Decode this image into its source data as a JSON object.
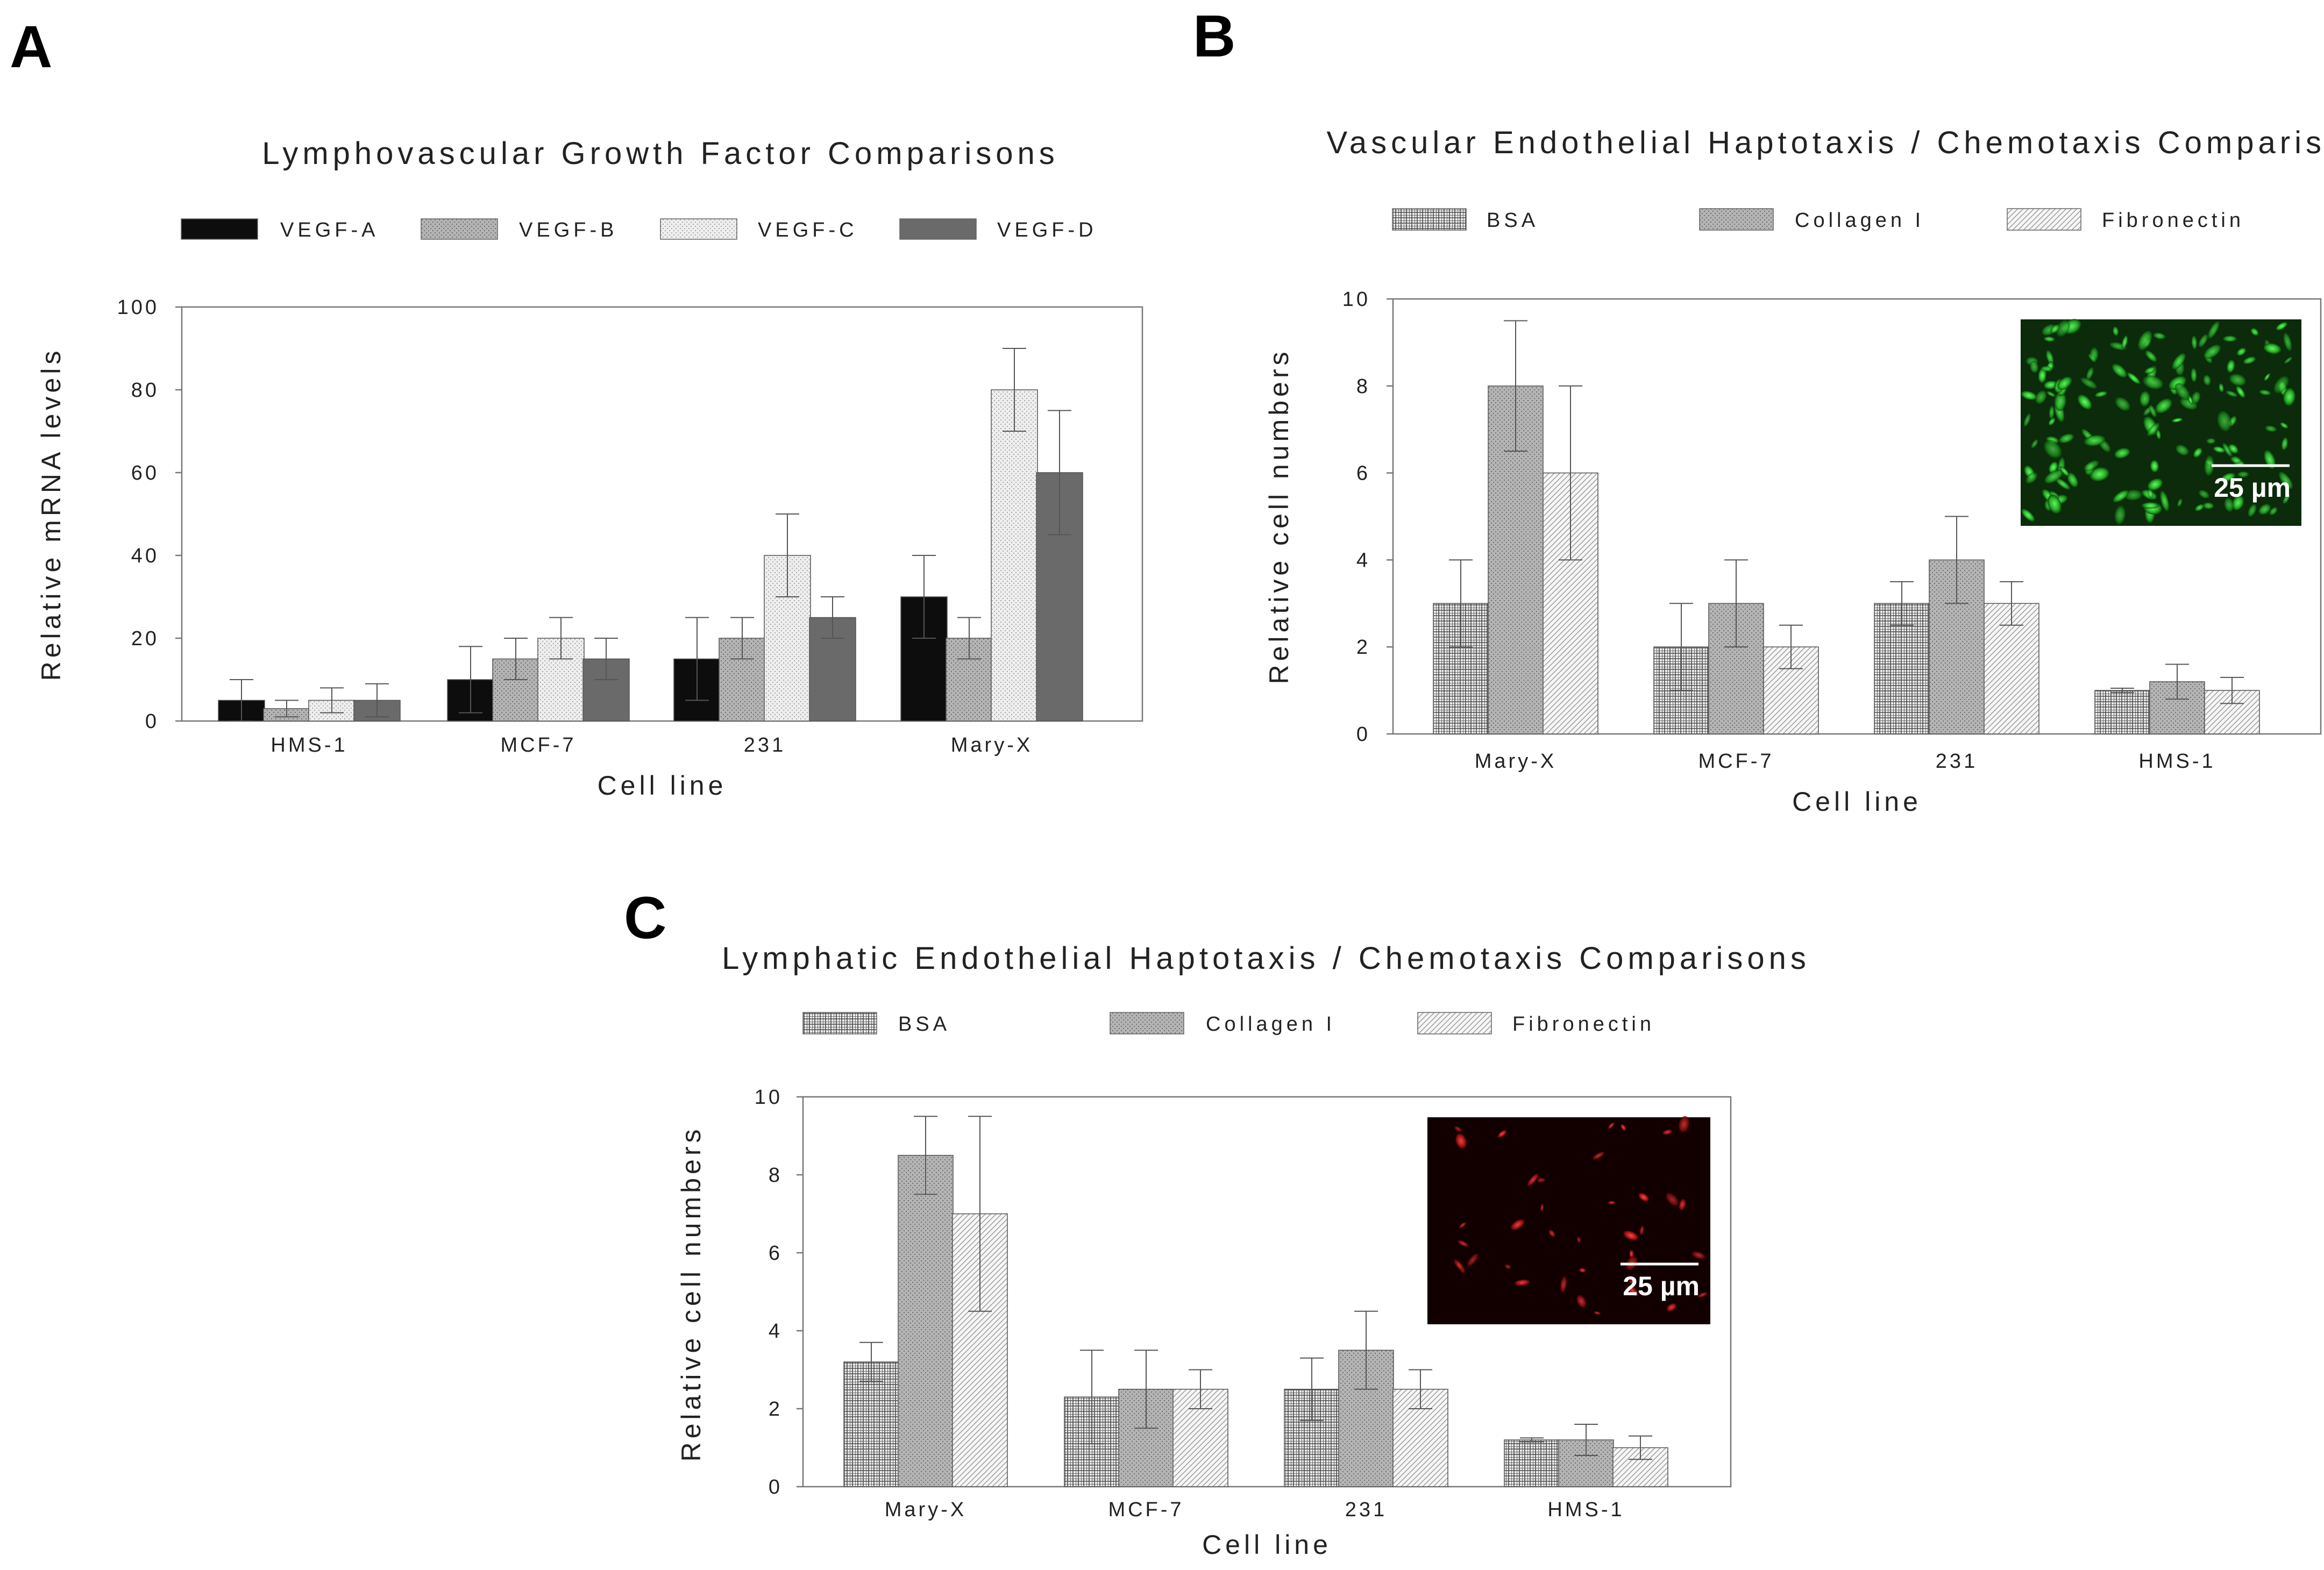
{
  "colors": {
    "vegf_a": "#0d0d0d",
    "vegf_d": "#6a6a6a",
    "bsa_line": "#555555",
    "collagen_fill": "#bdbdbd",
    "fibronectin_fill": "#ececec",
    "axis": "#777777",
    "inset_green_bg": "#0b2b0b",
    "inset_red_bg": "#120000"
  },
  "chart_data": [
    {
      "panel": "A",
      "type": "bar",
      "title": "Lymphovascular Growth Factor Comparisons",
      "xlabel": "Cell line",
      "ylabel": "Relative mRNA levels",
      "ylim": [
        0,
        100
      ],
      "yticks": [
        0,
        20,
        40,
        60,
        80,
        100
      ],
      "ytick_labels": [
        "0",
        "20",
        "40",
        "60",
        "80",
        "100"
      ],
      "grid": false,
      "legend_position": "top",
      "categories": [
        "HMS-1",
        "MCF-7",
        "231",
        "Mary-X"
      ],
      "series": [
        {
          "name": "VEGF-A",
          "pattern": "solid-black",
          "values": [
            5,
            10,
            15,
            30
          ],
          "errors": [
            5,
            8,
            10,
            10
          ]
        },
        {
          "name": "VEGF-B",
          "pattern": "gray-dots",
          "values": [
            3,
            15,
            20,
            20
          ],
          "errors": [
            2,
            5,
            5,
            5
          ]
        },
        {
          "name": "VEGF-C",
          "pattern": "light-dots",
          "values": [
            5,
            20,
            40,
            80
          ],
          "errors": [
            3,
            5,
            10,
            10
          ]
        },
        {
          "name": "VEGF-D",
          "pattern": "solid-gray",
          "values": [
            5,
            15,
            25,
            60
          ],
          "errors": [
            4,
            5,
            5,
            15
          ]
        }
      ]
    },
    {
      "panel": "B",
      "type": "bar",
      "title": "Vascular Endothelial Haptotaxis / Chemotaxis Comparisons",
      "xlabel": "Cell line",
      "ylabel": "Relative cell numbers",
      "ylim": [
        0,
        10
      ],
      "yticks": [
        0,
        2,
        4,
        6,
        8,
        10
      ],
      "ytick_labels": [
        "0",
        "2",
        "4",
        "6",
        "8",
        "10"
      ],
      "grid": false,
      "legend_position": "top",
      "categories": [
        "Mary-X",
        "MCF-7",
        "231",
        "HMS-1"
      ],
      "series": [
        {
          "name": "BSA",
          "pattern": "crosshatch",
          "values": [
            3,
            2,
            3,
            1
          ],
          "errors": [
            1,
            1,
            0.5,
            0.05
          ]
        },
        {
          "name": "Collagen I",
          "pattern": "gray-dots",
          "values": [
            8,
            3,
            4,
            1.2
          ],
          "errors": [
            1.5,
            1,
            1,
            0.4
          ]
        },
        {
          "name": "Fibronectin",
          "pattern": "diagonal",
          "values": [
            6,
            2,
            3,
            1
          ],
          "errors": [
            2,
            0.5,
            0.5,
            0.3
          ]
        }
      ],
      "inset": {
        "scale_label": "25 µm",
        "color": "green",
        "position": "top-right"
      }
    },
    {
      "panel": "C",
      "type": "bar",
      "title": "Lymphatic Endothelial Haptotaxis / Chemotaxis Comparisons",
      "xlabel": "Cell line",
      "ylabel": "Relative cell numbers",
      "ylim": [
        0,
        10
      ],
      "yticks": [
        0,
        2,
        4,
        6,
        8,
        10
      ],
      "ytick_labels": [
        "0",
        "2",
        "4",
        "6",
        "8",
        "10"
      ],
      "grid": false,
      "legend_position": "top",
      "categories": [
        "Mary-X",
        "MCF-7",
        "231",
        "HMS-1"
      ],
      "series": [
        {
          "name": "BSA",
          "pattern": "crosshatch",
          "values": [
            3.2,
            2.3,
            2.5,
            1.2
          ],
          "errors": [
            0.5,
            1.2,
            0.8,
            0.05
          ]
        },
        {
          "name": "Collagen I",
          "pattern": "gray-dots",
          "values": [
            8.5,
            2.5,
            3.5,
            1.2
          ],
          "errors": [
            1,
            1,
            1,
            0.4
          ]
        },
        {
          "name": "Fibronectin",
          "pattern": "diagonal",
          "values": [
            7,
            2.5,
            2.5,
            1
          ],
          "errors": [
            2.5,
            0.5,
            0.5,
            0.3
          ]
        }
      ],
      "inset": {
        "scale_label": "25 µm",
        "color": "red",
        "position": "top-right"
      }
    }
  ]
}
